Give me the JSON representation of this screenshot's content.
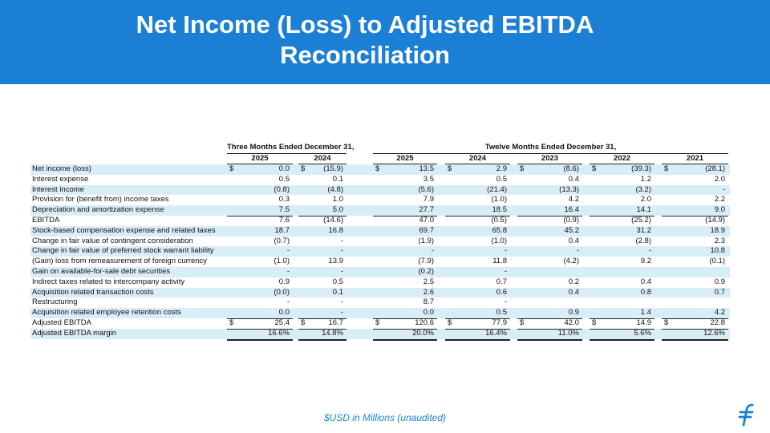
{
  "header": {
    "title": "Net Income (Loss) to Adjusted EBITDA Reconciliation"
  },
  "table": {
    "groups": [
      {
        "label": "Three Months Ended December 31,",
        "columns": 2
      },
      {
        "label": "Twelve Months Ended December 31,",
        "columns": 5
      }
    ],
    "years": [
      "2025",
      "2024",
      "2025",
      "2024",
      "2023",
      "2022",
      "2021"
    ],
    "currency_symbol": "$",
    "rows": [
      {
        "label": "Net income (loss)",
        "currency": true,
        "values": [
          "0.0",
          "(15.9)",
          "13.5",
          "2.9",
          "(8.6)",
          "(39.3)",
          "(28.1)"
        ]
      },
      {
        "label": "Interest expense",
        "values": [
          "0.5",
          "0.1",
          "3.5",
          "0.5",
          "0.4",
          "1.2",
          "2.0"
        ]
      },
      {
        "label": "Interest income",
        "values": [
          "(0.8)",
          "(4.8)",
          "(5.6)",
          "(21.4)",
          "(13.3)",
          "(3.2)",
          "-"
        ]
      },
      {
        "label": "Provision for (benefit from) income taxes",
        "values": [
          "0.3",
          "1.0",
          "7.9",
          "(1.0)",
          "4.2",
          "2.0",
          "2.2"
        ]
      },
      {
        "label": "Depreciation and amortization expense",
        "values": [
          "7.5",
          "5.0",
          "27.7",
          "18.5",
          "16.4",
          "14.1",
          "9.0"
        ]
      },
      {
        "label": "EBITDA",
        "rule_above": true,
        "values": [
          "7.6",
          "(14.6)",
          "47.0",
          "(0.5)",
          "(0.9)",
          "(25.2)",
          "(14.9)"
        ]
      },
      {
        "label": "Stock-based compensation expense and related taxes",
        "values": [
          "18.7",
          "16.8",
          "69.7",
          "65.8",
          "45.2",
          "31.2",
          "18.9"
        ]
      },
      {
        "label": "Change in fair value of contingent consideration",
        "values": [
          "(0.7)",
          "-",
          "(1.9)",
          "(1.0)",
          "0.4",
          "(2.8)",
          "2.3"
        ]
      },
      {
        "label": "Change in fair value of preferred stock warrant liability",
        "values": [
          "-",
          "-",
          "-",
          "-",
          "-",
          "-",
          "10.8"
        ]
      },
      {
        "label": "(Gain) loss from remeasurement of foreign currency",
        "values": [
          "(1.0)",
          "13.9",
          "(7.9)",
          "11.8",
          "(4.2)",
          "9.2",
          "(0.1)"
        ]
      },
      {
        "label": "Gain on available-for-sale debt securities",
        "values": [
          "-",
          "-",
          "(0.2)",
          "-",
          null,
          null,
          null
        ]
      },
      {
        "label": "Indirect taxes related to intercompany activity",
        "values": [
          "0.9",
          "0.5",
          "2.5",
          "0.7",
          "0.2",
          "0.4",
          "0.9"
        ]
      },
      {
        "label": "Acquisition related transaction costs",
        "values": [
          "(0.0)",
          "0.1",
          "2.6",
          "0.6",
          "0.4",
          "0.8",
          "0.7"
        ]
      },
      {
        "label": "Restructuring",
        "values": [
          "-",
          "-",
          "8.7",
          "-",
          null,
          null,
          null
        ]
      },
      {
        "label": "Acquisition related employee retention costs",
        "values": [
          "0.0",
          "-",
          "0.0",
          "0.5",
          "0.9",
          "1.4",
          "4.2"
        ]
      },
      {
        "label": "Adjusted EBITDA",
        "currency": true,
        "rule_above": true,
        "values": [
          "25.4",
          "16.7",
          "120.6",
          "77.9",
          "42.0",
          "14.9",
          "22.8"
        ]
      },
      {
        "label": "Adjusted EBITDA margin",
        "rule_above": true,
        "values": [
          "16.6%",
          "14.8%",
          "20.0%",
          "16.4%",
          "11.0%",
          "5.6%",
          "12.6%"
        ]
      }
    ]
  },
  "footer": {
    "note": "$USD in Millions (unaudited)"
  }
}
